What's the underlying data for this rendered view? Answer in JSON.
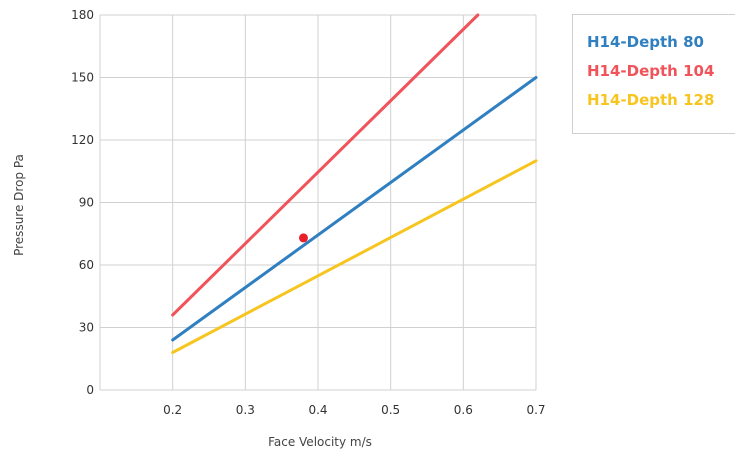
{
  "chart_data": {
    "type": "line",
    "title": "",
    "xlabel": "Face Velocity m/s",
    "ylabel": "Pressure Drop Pa",
    "x_tick_labels": [
      "0.2",
      "0.3",
      "0.4",
      "0.5",
      "0.6",
      "0.7"
    ],
    "y_tick_labels": [
      "0",
      "30",
      "60",
      "90",
      "120",
      "150",
      "180"
    ],
    "xlim": [
      0.1,
      0.7
    ],
    "ylim": [
      0,
      180
    ],
    "grid": true,
    "legend_position": "right",
    "series": [
      {
        "name": "H14-Depth 80",
        "color": "#2f7fc1",
        "x": [
          0.2,
          0.7
        ],
        "y": [
          24,
          150
        ]
      },
      {
        "name": "H14-Depth 104",
        "color": "#f0535a",
        "x": [
          0.2,
          0.62
        ],
        "y": [
          36,
          180
        ]
      },
      {
        "name": "H14-Depth 128",
        "color": "#f7c520",
        "x": [
          0.2,
          0.7
        ],
        "y": [
          18,
          110
        ]
      }
    ],
    "points": [
      {
        "x": 0.38,
        "y": 73,
        "color": "#e8202a"
      }
    ]
  }
}
